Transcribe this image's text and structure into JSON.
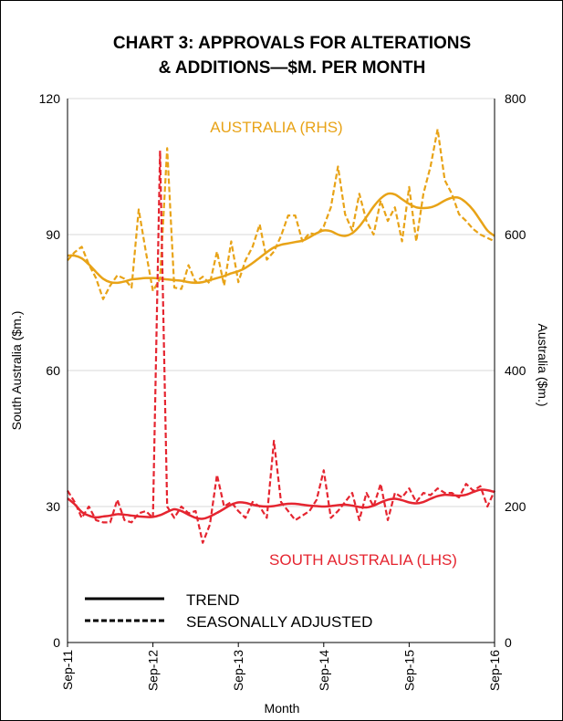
{
  "chart_data": {
    "type": "line",
    "title": [
      "CHART 3: APPROVALS FOR ALTERATIONS",
      "& ADDITIONS—$M. PER MONTH"
    ],
    "xlabel": "Month",
    "ylabel_left": "South Australia ($m.)",
    "ylabel_right": "Australia ($m.)",
    "x_ticks": [
      "Sep-11",
      "Sep-12",
      "Sep-13",
      "Sep-14",
      "Sep-15",
      "Sep-16"
    ],
    "x_months": [
      "Sep-11",
      "Oct-11",
      "Nov-11",
      "Dec-11",
      "Jan-12",
      "Feb-12",
      "Mar-12",
      "Apr-12",
      "May-12",
      "Jun-12",
      "Jul-12",
      "Aug-12",
      "Sep-12",
      "Oct-12",
      "Nov-12",
      "Dec-12",
      "Jan-13",
      "Feb-13",
      "Mar-13",
      "Apr-13",
      "May-13",
      "Jun-13",
      "Jul-13",
      "Aug-13",
      "Sep-13",
      "Oct-13",
      "Nov-13",
      "Dec-13",
      "Jan-14",
      "Feb-14",
      "Mar-14",
      "Apr-14",
      "May-14",
      "Jun-14",
      "Jul-14",
      "Aug-14",
      "Sep-14",
      "Oct-14",
      "Nov-14",
      "Dec-14",
      "Jan-15",
      "Feb-15",
      "Mar-15",
      "Apr-15",
      "May-15",
      "Jun-15",
      "Jul-15",
      "Aug-15",
      "Sep-15",
      "Oct-15",
      "Nov-15",
      "Dec-15",
      "Jan-16",
      "Feb-16",
      "Mar-16",
      "Apr-16",
      "May-16",
      "Jun-16",
      "Jul-16",
      "Aug-16",
      "Sep-16"
    ],
    "y_left_ticks": [
      "0",
      "30",
      "60",
      "90",
      "120"
    ],
    "y_left_range": [
      0,
      120
    ],
    "y_right_ticks": [
      "0",
      "200",
      "400",
      "600",
      "800"
    ],
    "y_right_range": [
      0,
      800
    ],
    "grid": "horizontal",
    "colors": {
      "australia": "#E8A317",
      "south_australia": "#E52530"
    },
    "series": [
      {
        "key": "aus_trend",
        "name": "AUSTRALIA (RHS)",
        "axis": "right",
        "style": "solid",
        "color": "#E8A317",
        "values": [
          569,
          569,
          565,
          556,
          545,
          535,
          530,
          529,
          531,
          534,
          535,
          536,
          536,
          535,
          534,
          533,
          532,
          530,
          529,
          530,
          533,
          536,
          539,
          543,
          546,
          551,
          558,
          566,
          574,
          581,
          585,
          587,
          589,
          591,
          596,
          602,
          606,
          605,
          600,
          598,
          602,
          612,
          626,
          641,
          653,
          660,
          659,
          652,
          645,
          640,
          639,
          640,
          644,
          650,
          654,
          654,
          647,
          636,
          621,
          606,
          598
        ]
      },
      {
        "key": "aus_sa",
        "name": "AUSTRALIA (RHS)",
        "axis": "right",
        "style": "dashed",
        "color": "#E8A317",
        "values": [
          562,
          574,
          582,
          556,
          536,
          505,
          525,
          540,
          535,
          522,
          637,
          575,
          517,
          535,
          727,
          522,
          520,
          555,
          530,
          538,
          528,
          575,
          525,
          590,
          530,
          562,
          582,
          615,
          563,
          575,
          598,
          628,
          628,
          590,
          602,
          600,
          612,
          640,
          700,
          630,
          606,
          660,
          620,
          600,
          650,
          620,
          640,
          590,
          670,
          590,
          660,
          700,
          755,
          680,
          660,
          630,
          620,
          608,
          600,
          595,
          590
        ]
      },
      {
        "key": "sa_trend",
        "name": "SOUTH AUSTRALIA (LHS)",
        "axis": "left",
        "style": "solid",
        "color": "#E52530",
        "values": [
          31.8,
          30.5,
          28.8,
          28.0,
          27.6,
          27.8,
          28.0,
          28.3,
          28.2,
          28.0,
          27.8,
          27.7,
          27.7,
          28.1,
          28.8,
          29.4,
          29.0,
          28.2,
          27.5,
          27.3,
          27.8,
          28.6,
          29.5,
          30.4,
          30.9,
          30.8,
          30.4,
          30.1,
          30.0,
          30.1,
          30.4,
          30.6,
          30.6,
          30.4,
          30.2,
          30.1,
          30.0,
          30.1,
          30.3,
          30.4,
          30.2,
          29.9,
          29.8,
          30.2,
          30.9,
          31.5,
          31.7,
          31.4,
          30.9,
          30.7,
          31.0,
          31.7,
          32.3,
          32.6,
          32.5,
          32.4,
          32.6,
          33.2,
          33.7,
          33.6,
          33.2
        ]
      },
      {
        "key": "sa_sa",
        "name": "SOUTH AUSTRALIA (LHS)",
        "axis": "left",
        "style": "dashed",
        "color": "#E52530",
        "values": [
          33.5,
          31.0,
          27.5,
          30.0,
          27.0,
          26.5,
          26.5,
          31.5,
          27.0,
          26.5,
          28.5,
          29.0,
          27.5,
          108.5,
          30.0,
          27.5,
          30.0,
          28.5,
          29.0,
          22.0,
          26.0,
          37.0,
          30.0,
          31.0,
          29.0,
          27.5,
          31.0,
          30.0,
          27.5,
          44.5,
          31.0,
          29.0,
          27.0,
          28.0,
          29.0,
          31.5,
          38.0,
          27.5,
          29.0,
          31.0,
          33.0,
          27.0,
          33.0,
          30.0,
          35.0,
          27.0,
          33.0,
          32.0,
          34.0,
          31.0,
          33.0,
          32.5,
          34.0,
          33.0,
          33.0,
          32.0,
          35.0,
          33.5,
          34.5,
          30.0,
          33.5
        ]
      }
    ],
    "series_labels": {
      "australia": "AUSTRALIA (RHS)",
      "south_australia": "SOUTH AUSTRALIA (LHS)"
    },
    "legend": {
      "position": "bottom-left",
      "items": [
        {
          "label": "TREND",
          "style": "solid"
        },
        {
          "label": "SEASONALLY ADJUSTED",
          "style": "dashed"
        }
      ]
    }
  }
}
